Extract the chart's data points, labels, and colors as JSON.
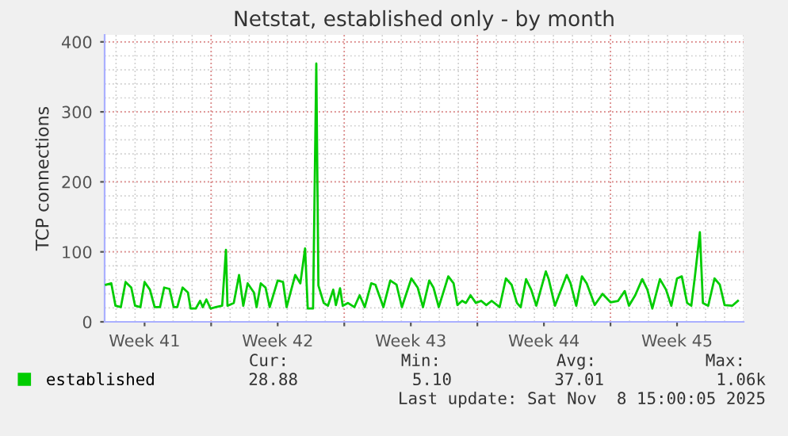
{
  "chart_data": {
    "type": "line",
    "title": "Netstat, established only - by month",
    "ylabel": "TCP connections",
    "x": [
      "2025-10-07T11:17",
      "2025-10-07T18:00",
      "2025-10-07T23:17",
      "2025-10-08T06:00",
      "2025-10-08T12:00",
      "2025-10-08T19:12",
      "2025-10-09T00:00",
      "2025-10-09T06:43",
      "2025-10-09T12:00",
      "2025-10-09T18:43",
      "2025-10-10T00:43",
      "2025-10-10T07:26",
      "2025-10-10T12:43",
      "2025-10-10T19:26",
      "2025-10-11T00:43",
      "2025-10-11T05:17",
      "2025-10-11T12:00",
      "2025-10-11T18:43",
      "2025-10-11T22:05",
      "2025-10-12T04:34",
      "2025-10-12T10:05",
      "2025-10-12T13:26",
      "2025-10-12T18:00",
      "2025-10-12T23:17",
      "2025-10-13T06:00",
      "2025-10-13T13:55",
      "2025-10-13T18:43",
      "2025-10-13T20:38",
      "2025-10-14T04:34",
      "2025-10-14T11:17",
      "2025-10-14T16:34",
      "2025-10-14T22:05",
      "2025-10-15T06:00",
      "2025-10-15T09:22",
      "2025-10-15T14:38",
      "2025-10-15T20:38",
      "2025-10-16T01:55",
      "2025-10-16T12:00",
      "2025-10-16T18:43",
      "2025-10-16T23:17",
      "2025-10-17T10:05",
      "2025-10-17T16:34",
      "2025-10-17T22:34",
      "2025-10-18T01:55",
      "2025-10-18T08:38",
      "2025-10-18T12:43",
      "2025-10-18T15:22",
      "2025-10-18T22:05",
      "2025-10-19T03:22",
      "2025-10-19T10:05",
      "2025-10-19T13:26",
      "2025-10-19T18:43",
      "2025-10-19T22:05",
      "2025-10-20T04:34",
      "2025-10-20T12:43",
      "2025-10-20T19:26",
      "2025-10-21T01:55",
      "2025-10-21T10:05",
      "2025-10-21T15:22",
      "2025-10-22T01:26",
      "2025-10-22T10:05",
      "2025-10-22T18:00",
      "2025-10-23T00:43",
      "2025-10-23T12:43",
      "2025-10-23T20:38",
      "2025-10-24T03:22",
      "2025-10-24T11:17",
      "2025-10-24T16:34",
      "2025-10-24T23:17",
      "2025-10-25T11:17",
      "2025-10-25T18:00",
      "2025-10-25T22:48",
      "2025-10-26T04:48",
      "2025-10-26T09:36",
      "2025-10-26T15:22",
      "2025-10-26T22:05",
      "2025-10-27T04:48",
      "2025-10-27T11:17",
      "2025-10-27T18:00",
      "2025-10-28T04:05",
      "2025-10-28T12:00",
      "2025-10-28T19:12",
      "2025-10-29T01:55",
      "2025-10-29T06:43",
      "2025-10-29T13:26",
      "2025-10-29T19:55",
      "2025-10-30T02:24",
      "2025-10-30T14:24",
      "2025-10-30T18:00",
      "2025-10-31T01:55",
      "2025-10-31T16:48",
      "2025-10-31T21:36",
      "2025-11-01T04:48",
      "2025-11-01T12:00",
      "2025-11-01T18:00",
      "2025-11-02T04:05",
      "2025-11-02T13:55",
      "2025-11-03T00:00",
      "2025-11-03T09:36",
      "2025-11-03T18:00",
      "2025-11-03T23:17",
      "2025-11-04T07:12",
      "2025-11-04T16:05",
      "2025-11-04T22:34",
      "2025-11-05T04:48",
      "2025-11-05T14:24",
      "2025-11-05T22:05",
      "2025-11-06T04:48",
      "2025-11-06T12:00",
      "2025-11-06T18:00",
      "2025-11-07T00:43",
      "2025-11-07T06:00",
      "2025-11-07T10:34",
      "2025-11-07T16:48",
      "2025-11-07T20:38",
      "2025-11-08T03:22",
      "2025-11-08T11:17",
      "2025-11-08T18:00",
      "2025-11-09T00:00",
      "2025-11-09T09:36",
      "2025-11-09T16:48"
    ],
    "series": [
      {
        "name": "established",
        "color": "#00cc00",
        "values": [
          53,
          55,
          23,
          21,
          57,
          49,
          23,
          21,
          57,
          46,
          21,
          21,
          49,
          47,
          21,
          21,
          49,
          42,
          19,
          19,
          30,
          21,
          32,
          19,
          21,
          23,
          103,
          23,
          27,
          67,
          23,
          55,
          42,
          21,
          55,
          49,
          21,
          59,
          57,
          21,
          67,
          55,
          105,
          19,
          19,
          369,
          52,
          27,
          23,
          46,
          24,
          48,
          23,
          27,
          21,
          38,
          21,
          55,
          53,
          21,
          59,
          53,
          21,
          62,
          49,
          21,
          59,
          49,
          21,
          65,
          55,
          24,
          30,
          27,
          38,
          27,
          30,
          24,
          30,
          21,
          62,
          53,
          27,
          21,
          61,
          46,
          23,
          72,
          61,
          23,
          67,
          55,
          23,
          65,
          55,
          24,
          40,
          28,
          30,
          44,
          23,
          38,
          61,
          46,
          19,
          61,
          46,
          23,
          62,
          65,
          27,
          23,
          65,
          128,
          27,
          23,
          62,
          53,
          24,
          23,
          30
        ]
      }
    ],
    "xlim": [
      "2025-10-07T09:36",
      "2025-11-10T00:00"
    ],
    "xticks": [
      {
        "value": "2025-10-09T12:00",
        "label": "Week 41"
      },
      {
        "value": "2025-10-13",
        "label": null
      },
      {
        "value": "2025-10-16T12:00",
        "label": "Week 42"
      },
      {
        "value": "2025-10-20",
        "label": null
      },
      {
        "value": "2025-10-23T12:00",
        "label": "Week 43"
      },
      {
        "value": "2025-10-27",
        "label": null
      },
      {
        "value": "2025-10-30T12:00",
        "label": "Week 44"
      },
      {
        "value": "2025-11-03",
        "label": null
      },
      {
        "value": "2025-11-06T12:00",
        "label": "Week 45"
      }
    ],
    "ylim": [
      0,
      410
    ],
    "yticks": [
      0,
      100,
      200,
      300,
      400
    ],
    "grid": true,
    "legend": "bottom left",
    "marker": "none",
    "line_style": "solid",
    "annotations": [
      "Cur:",
      "Min:",
      "Avg:",
      "Max:",
      "28.88",
      "5.10",
      "37.01",
      "1.06k",
      "Last update: Sat Nov  8 15:00:05 2025"
    ]
  }
}
